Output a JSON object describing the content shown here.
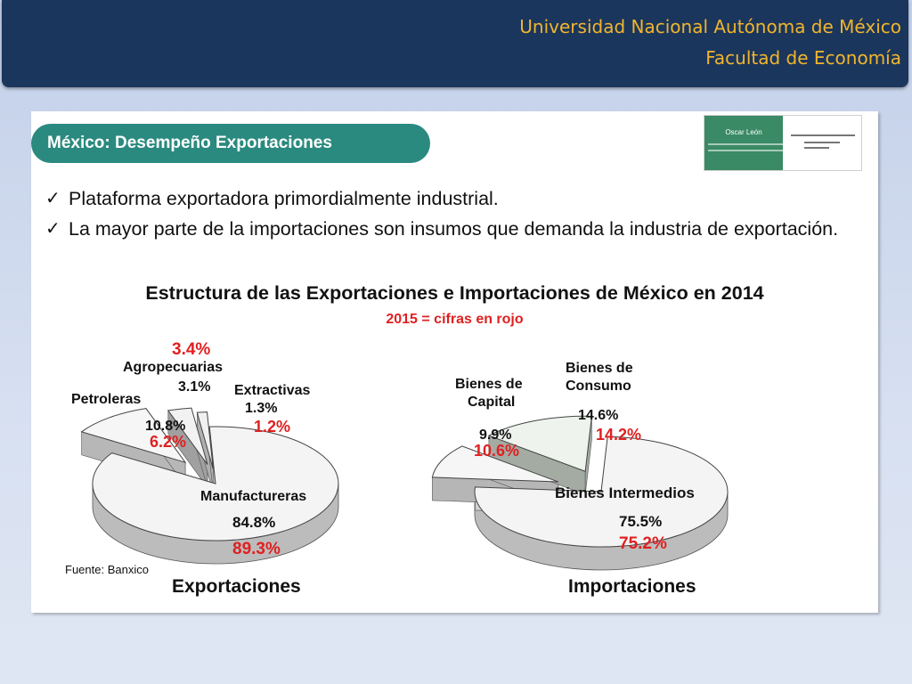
{
  "header": {
    "university": "Universidad Nacional Autónoma de México",
    "faculty": "Facultad de Economía"
  },
  "slide": {
    "title": "México: Desempeño Exportaciones",
    "card": {
      "name": "Oscar León"
    },
    "bullets": [
      "Plataforma exportadora primordialmente industrial.",
      "La mayor parte de la importaciones son insumos que demanda la industria de exportación."
    ],
    "check_icon": "check-icon",
    "chart_title": "Estructura de las Exportaciones e Importaciones de México en 2014",
    "chart_subtitle": "2015 = cifras en rojo",
    "source": "Fuente: Banxico",
    "colors": {
      "accent_teal": "#2b8a7f",
      "highlight_red": "#e02020",
      "header_navy": "#1b365c",
      "header_gold": "#f1b52d"
    }
  },
  "chart_data": [
    {
      "type": "pie",
      "title": "Exportaciones",
      "categories": [
        "Manufactureras",
        "Petroleras",
        "Agropecuarias",
        "Extractivas"
      ],
      "series": [
        {
          "values": [
            84.8,
            10.8,
            3.1,
            1.3
          ]
        },
        {
          "values": [
            89.3,
            6.2,
            3.4,
            1.2
          ]
        }
      ],
      "labels_2014": [
        "84.8%",
        "10.8%",
        "3.1%",
        "1.3%"
      ],
      "labels_2015": [
        "89.3%",
        "6.2%",
        "3.4%",
        "1.2%"
      ]
    },
    {
      "type": "pie",
      "title": "Importaciones",
      "categories": [
        "Bienes Intermedios",
        "Bienes de Capital",
        "Bienes de Consumo"
      ],
      "series": [
        {
          "values": [
            75.5,
            9.9,
            14.6
          ]
        },
        {
          "values": [
            75.2,
            10.6,
            14.2
          ]
        }
      ],
      "labels_2014": [
        "75.5%",
        "9.9%",
        "14.6%"
      ],
      "labels_2015": [
        "75.2%",
        "10.6%",
        "14.2%"
      ]
    }
  ]
}
